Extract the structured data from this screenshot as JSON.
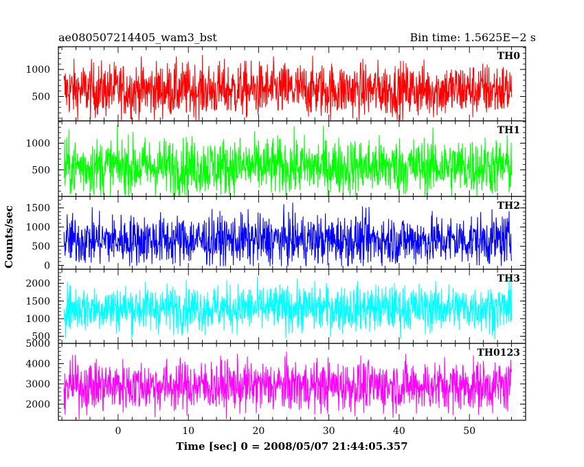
{
  "header": {
    "left": "ae080507214405_wam3_bst",
    "right": "Bin time: 1.5625E−2 s"
  },
  "chart_data": {
    "type": "line",
    "xlabel": "Time [sec] 0 = 2008/05/07 21:44:05.357",
    "ylabel": "Counts/sec",
    "xlim": [
      -8.5,
      58
    ],
    "x_ticks": [
      0,
      10,
      20,
      30,
      40,
      50
    ],
    "x_tick_labels": [
      "0",
      "10",
      "20",
      "30",
      "40",
      "50"
    ],
    "data_x_range": [
      -7.7,
      56
    ],
    "bin_time_s": 0.015625,
    "grid": false,
    "panels": [
      {
        "name": "TH0",
        "color": "#ff0000",
        "ylim": [
          50,
          1420
        ],
        "y_ticks": [
          500,
          1000
        ],
        "y_tick_labels": [
          "500",
          "1000"
        ],
        "mean": 620,
        "min": 60,
        "max": 1420
      },
      {
        "name": "TH1",
        "color": "#00ff00",
        "ylim": [
          0,
          1420
        ],
        "y_ticks": [
          500,
          1000
        ],
        "y_tick_labels": [
          "500",
          "1000"
        ],
        "mean": 560,
        "min": 0,
        "max": 1420
      },
      {
        "name": "TH2",
        "color": "#0000ff",
        "ylim": [
          -100,
          1800
        ],
        "y_ticks": [
          0,
          500,
          1000,
          1500
        ],
        "y_tick_labels": [
          "0",
          "500",
          "1000",
          "1500"
        ],
        "mean": 660,
        "min": -20,
        "max": 1700
      },
      {
        "name": "TH3",
        "color": "#00ffff",
        "ylim": [
          300,
          2400
        ],
        "y_ticks": [
          500,
          1000,
          1500,
          2000
        ],
        "y_tick_labels": [
          "500",
          "1000",
          "1500",
          "2000"
        ],
        "mean": 1300,
        "min": 380,
        "max": 2350
      },
      {
        "name": "TH0123",
        "color": "#ff00ff",
        "ylim": [
          1200,
          5000
        ],
        "y_ticks": [
          2000,
          3000,
          4000,
          5000
        ],
        "y_tick_labels": [
          "2000",
          "3000",
          "4000",
          "5000"
        ],
        "mean": 2900,
        "min": 1250,
        "max": 4900
      }
    ]
  }
}
